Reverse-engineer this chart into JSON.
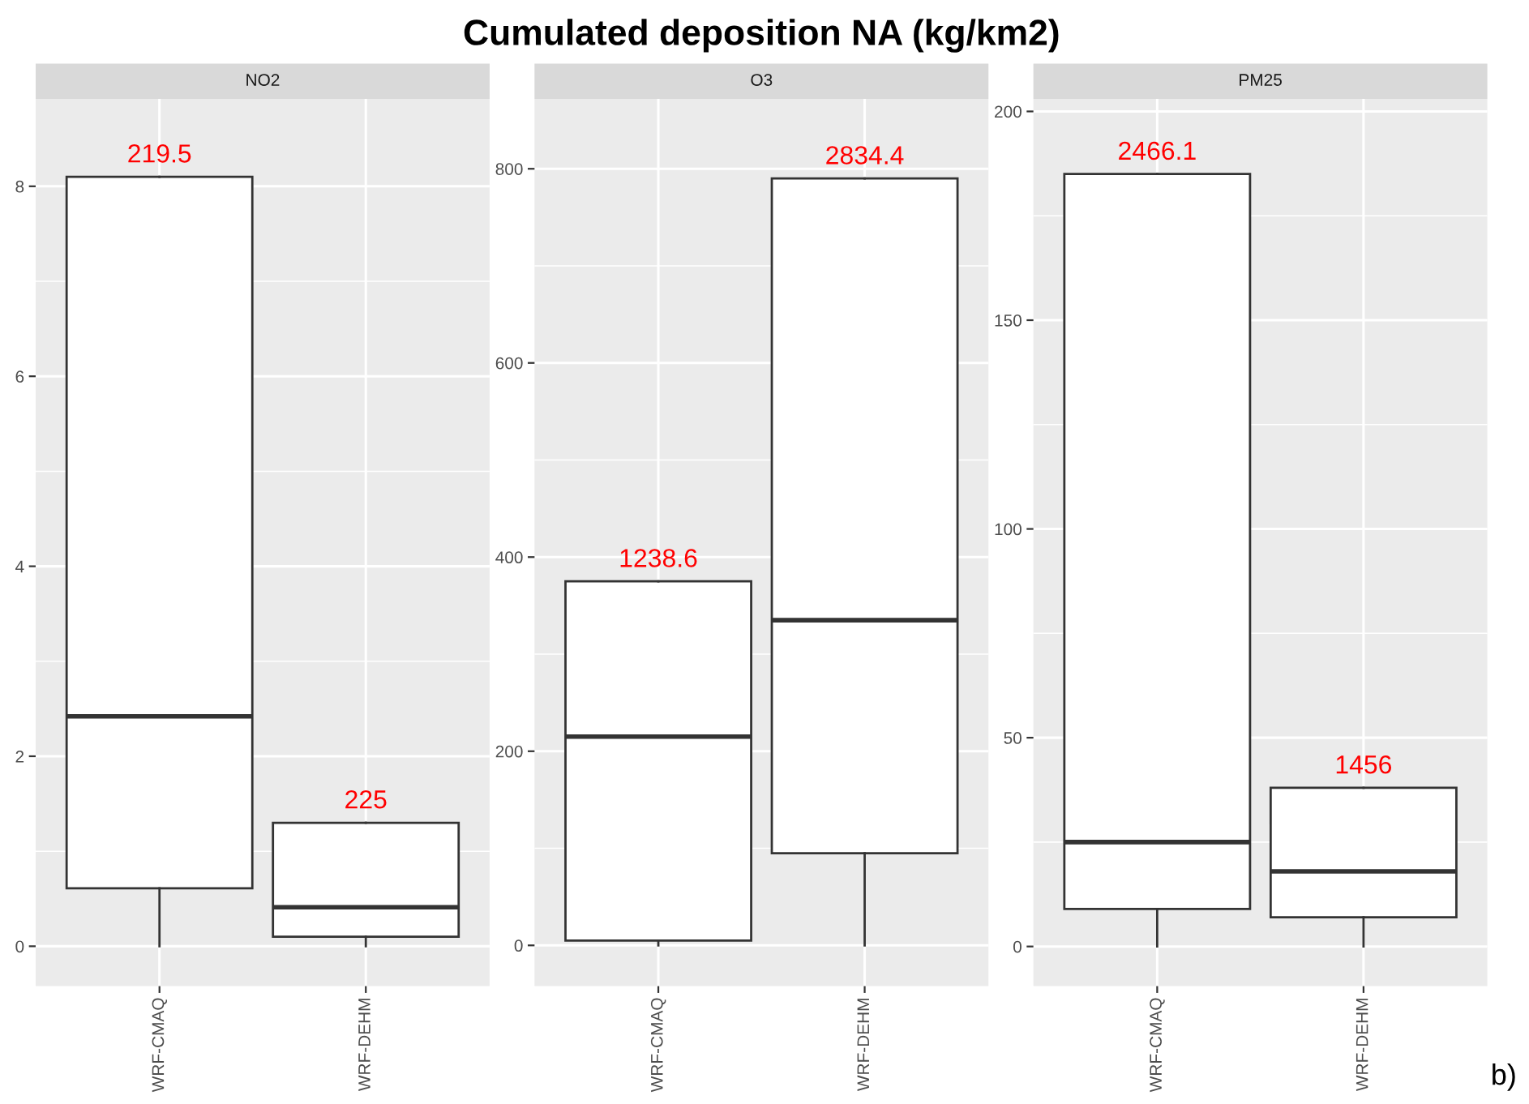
{
  "chart_data": [
    {
      "type": "box",
      "subtitle": "NO2",
      "categories": [
        "WRF-CMAQ",
        "WRF-DEHM"
      ],
      "color": "#ffffff",
      "boxes": [
        {
          "low": 0,
          "q1": 0.61,
          "median": 2.42,
          "q3": 8.1,
          "high": 8.1
        },
        {
          "low": 0,
          "q1": 0.1,
          "median": 0.41,
          "q3": 1.3,
          "high": 1.3
        }
      ],
      "ylim": [
        -0.42,
        8.92
      ],
      "yticks": [
        0,
        2,
        4,
        6,
        8
      ],
      "grid": true,
      "annotations": [
        "219.5",
        "225"
      ]
    },
    {
      "type": "box",
      "title": "Cumulated deposition NA (kg/km2)",
      "subtitle": "O3",
      "categories": [
        "WRF-CMAQ",
        "WRF-DEHM"
      ],
      "color": "#ffffff",
      "boxes": [
        {
          "low": 0,
          "q1": 5,
          "median": 215,
          "q3": 375,
          "high": 375
        },
        {
          "low": 0,
          "q1": 95,
          "median": 335,
          "q3": 790,
          "high": 790
        }
      ],
      "ylim": [
        -42,
        872
      ],
      "yticks": [
        0,
        200,
        400,
        600,
        800
      ],
      "grid": true,
      "annotations": [
        "1238.6",
        "2834.4"
      ]
    },
    {
      "type": "box",
      "subtitle": "PM25",
      "categories": [
        "WRF-CMAQ",
        "WRF-DEHM"
      ],
      "color": "#ffffff",
      "boxes": [
        {
          "low": 0,
          "q1": 9,
          "median": 25,
          "q3": 185,
          "high": 185
        },
        {
          "low": 0,
          "q1": 7,
          "median": 18,
          "q3": 38,
          "high": 38
        }
      ],
      "ylim": [
        -9.5,
        203
      ],
      "yticks": [
        0,
        50,
        100,
        150,
        200
      ],
      "grid": true,
      "annotations": [
        "2466.1",
        "1456",
        "b)"
      ]
    }
  ]
}
